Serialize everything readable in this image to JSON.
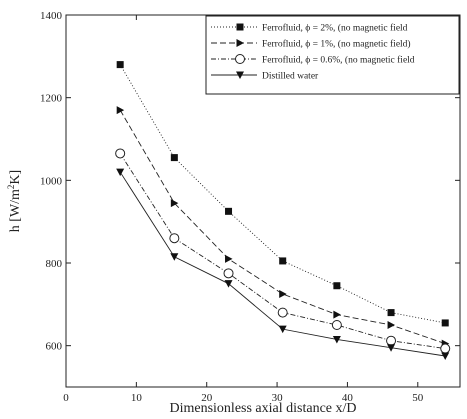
{
  "chart_data": {
    "type": "line",
    "title": "",
    "xlabel": "Dimensionless axial distance x/D",
    "ylabel": "h [W/m²K]",
    "ylabel_main": "h [W/m",
    "ylabel_sup": "2",
    "ylabel_tail": "K]",
    "xlim": [
      0,
      56
    ],
    "ylim": [
      500,
      1400
    ],
    "xticks": [
      0,
      10,
      20,
      30,
      40,
      50
    ],
    "yticks": [
      600,
      800,
      1000,
      1200,
      1400
    ],
    "grid": false,
    "legend_position": "top-right",
    "x": [
      7.7,
      15.4,
      23.1,
      30.8,
      38.5,
      46.2,
      53.9
    ],
    "series": [
      {
        "name": "Ferrofluid, ϕ = 2%, (no magnetic field",
        "marker": "square-filled",
        "dash": "1,2",
        "values": [
          1280,
          1055,
          925,
          805,
          745,
          680,
          655
        ]
      },
      {
        "name": "Ferrofluid, ϕ = 1%, (no magnetic field)",
        "marker": "triangle-right-filled",
        "dash": "6,3",
        "values": [
          1170,
          945,
          810,
          725,
          675,
          650,
          605
        ]
      },
      {
        "name": "Ferrofluid, ϕ = 0.6%, (no magnetic field",
        "marker": "circle-open",
        "dash": "5,2,1,2",
        "values": [
          1065,
          860,
          775,
          680,
          650,
          612,
          593
        ]
      },
      {
        "name": "Distilled water",
        "marker": "triangle-down-filled",
        "dash": "",
        "values": [
          1020,
          815,
          750,
          640,
          615,
          595,
          575
        ]
      }
    ]
  }
}
